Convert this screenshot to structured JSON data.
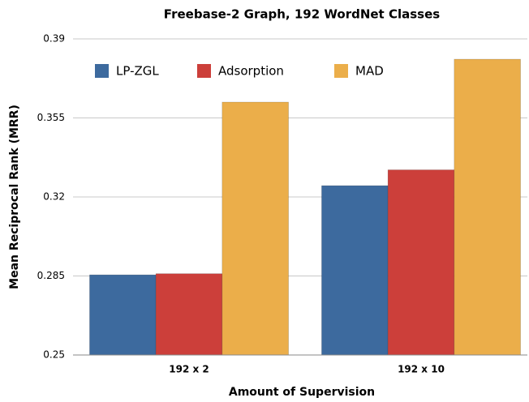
{
  "chart_data": {
    "type": "bar",
    "title": "Freebase-2 Graph, 192 WordNet Classes",
    "x_label": "Amount of Supervision",
    "y_label": "Mean Reciprocal Rank (MRR)",
    "categories": [
      "192 x 2",
      "192 x 10"
    ],
    "series": [
      {
        "name": "LP-ZGL",
        "color": "#3d6a9e",
        "values": [
          0.2855,
          0.325
        ]
      },
      {
        "name": "Adsorption",
        "color": "#cc3f3a",
        "values": [
          0.286,
          0.332
        ]
      },
      {
        "name": "MAD",
        "color": "#ebae4a",
        "values": [
          0.362,
          0.381
        ]
      }
    ],
    "ylim": [
      0.25,
      0.39
    ],
    "yticks": [
      0.25,
      0.285,
      0.32,
      0.355,
      0.39
    ],
    "grid": true,
    "legend": "top-left"
  }
}
